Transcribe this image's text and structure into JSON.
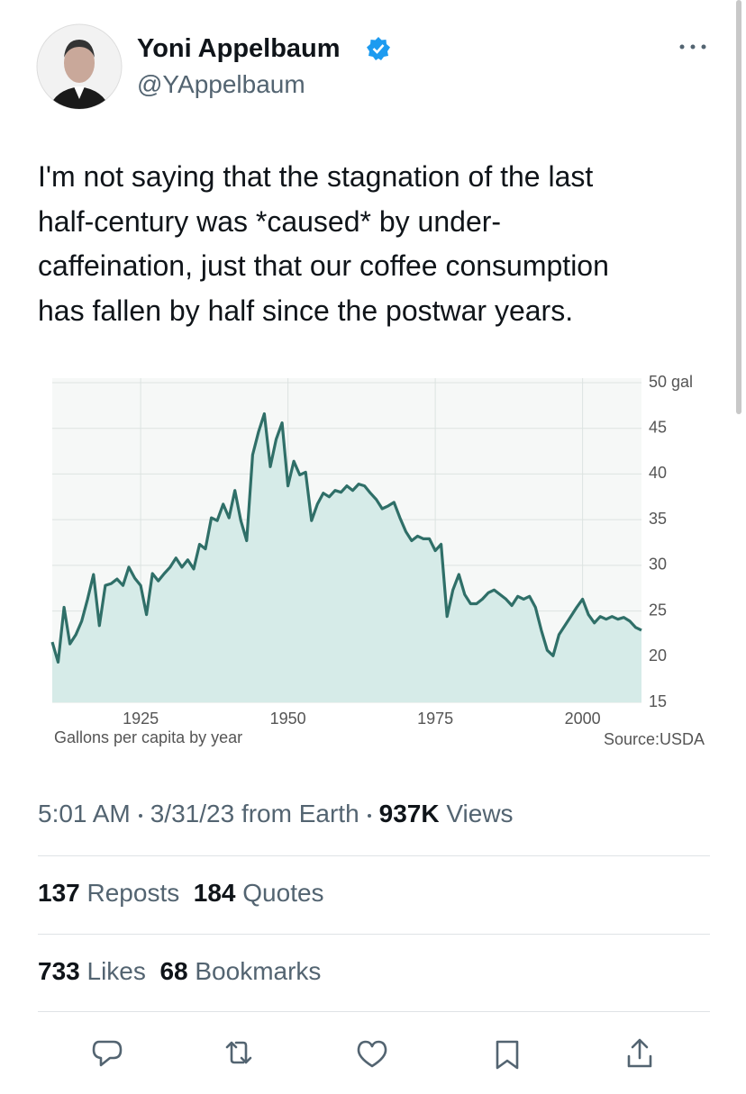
{
  "user": {
    "name": "Yoni Appelbaum",
    "handle": "@YAppelbaum"
  },
  "tweet": {
    "lines": [
      "I'm not saying that the stagnation of the last",
      "half-century was *caused* by under-",
      "caffeination, just that our coffee consumption",
      "has fallen by half since the postwar years."
    ]
  },
  "chart_data": {
    "type": "line",
    "x_label": "Gallons per capita by year",
    "source": "Source:USDA",
    "color": "#2f6f68",
    "fill": "#d6ebe8",
    "grid": true,
    "x": [
      1910,
      1911,
      1912,
      1913,
      1914,
      1915,
      1916,
      1917,
      1918,
      1919,
      1920,
      1921,
      1922,
      1923,
      1924,
      1925,
      1926,
      1927,
      1928,
      1929,
      1930,
      1931,
      1932,
      1933,
      1934,
      1935,
      1936,
      1937,
      1938,
      1939,
      1940,
      1941,
      1942,
      1943,
      1944,
      1945,
      1946,
      1947,
      1948,
      1949,
      1950,
      1951,
      1952,
      1953,
      1954,
      1955,
      1956,
      1957,
      1958,
      1959,
      1960,
      1961,
      1962,
      1963,
      1964,
      1965,
      1966,
      1967,
      1968,
      1969,
      1970,
      1971,
      1972,
      1973,
      1974,
      1975,
      1976,
      1977,
      1978,
      1979,
      1980,
      1981,
      1982,
      1983,
      1984,
      1985,
      1986,
      1987,
      1988,
      1989,
      1990,
      1991,
      1992,
      1993,
      1994,
      1995,
      1996,
      1997,
      1998,
      1999,
      2000,
      2001,
      2002,
      2003,
      2004,
      2005,
      2006,
      2007,
      2008,
      2009,
      2010
    ],
    "values": [
      21.6,
      19.4,
      25.4,
      21.4,
      22.4,
      23.9,
      26.3,
      29,
      23.4,
      27.8,
      28,
      28.5,
      27.8,
      29.8,
      28.6,
      27.8,
      24.6,
      29.1,
      28.3,
      29.1,
      29.8,
      30.8,
      29.8,
      30.6,
      29.6,
      32.3,
      31.8,
      35.2,
      34.9,
      36.7,
      35.2,
      38.2,
      34.9,
      32.7,
      42.1,
      44.6,
      46.6,
      40.8,
      43.8,
      45.6,
      38.7,
      41.4,
      39.9,
      40.2,
      34.9,
      36.7,
      37.9,
      37.5,
      38.2,
      38,
      38.7,
      38.2,
      38.9,
      38.7,
      37.9,
      37.2,
      36.2,
      36.5,
      36.9,
      35.2,
      33.7,
      32.7,
      33.2,
      32.9,
      32.9,
      31.6,
      32.3,
      24.4,
      27.3,
      29,
      26.8,
      25.8,
      25.8,
      26.3,
      27,
      27.3,
      26.8,
      26.3,
      25.6,
      26.6,
      26.3,
      26.6,
      25.4,
      22.9,
      20.7,
      20.1,
      22.4,
      23.4,
      24.4,
      25.4,
      26.3,
      24.6,
      23.7,
      24.4,
      24.1,
      24.4,
      24.1,
      24.3,
      23.9,
      23.2,
      22.9
    ],
    "xlim": [
      1910,
      2010
    ],
    "xticks": [
      1925,
      1950,
      1975,
      2000
    ],
    "ylim": [
      15,
      50
    ],
    "yticks": [
      15,
      20,
      25,
      30,
      35,
      40,
      45,
      {
        "value": 50,
        "label": "50 gal"
      }
    ]
  },
  "meta": {
    "time": "5:01 AM",
    "date": "3/31/23",
    "source": "from Earth",
    "views": "937K",
    "views_label": "Views"
  },
  "stats": {
    "reposts": 137,
    "reposts_label": "Reposts",
    "quotes": 184,
    "quotes_label": "Quotes",
    "likes": 733,
    "likes_label": "Likes",
    "bookmarks": 68,
    "bookmarks_label": "Bookmarks"
  }
}
